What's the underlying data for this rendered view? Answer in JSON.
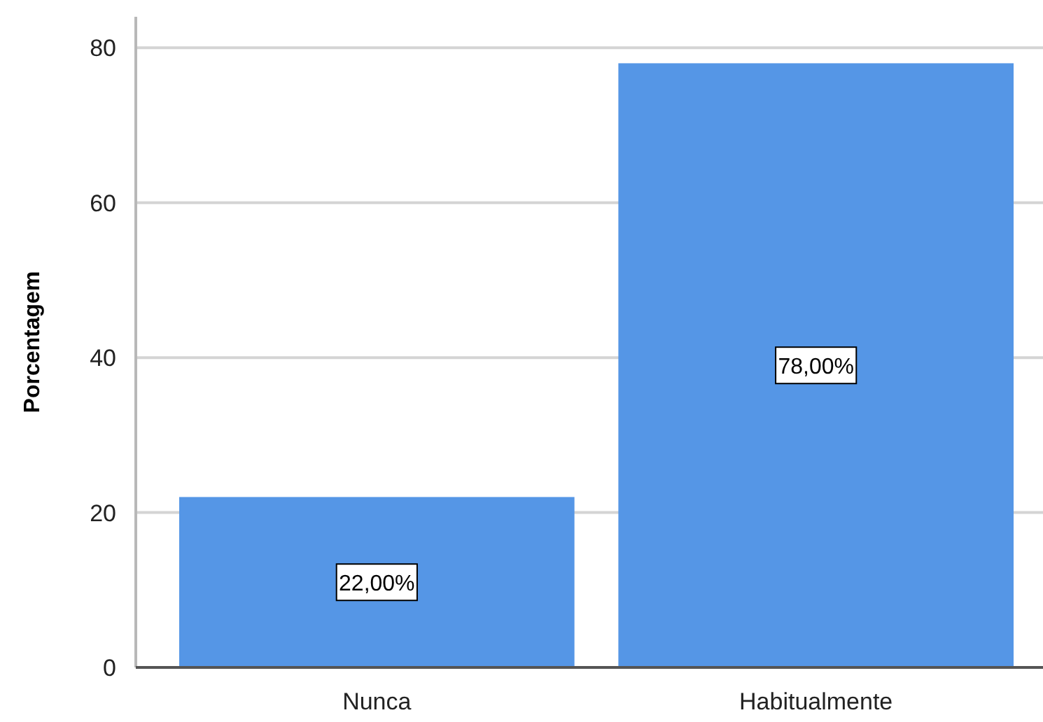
{
  "chart_data": {
    "type": "bar",
    "ylabel": "Porcentagem",
    "categories": [
      "Nunca",
      "Habitualmente"
    ],
    "values": [
      22,
      78
    ],
    "value_labels": [
      "22,00%",
      "78,00%"
    ],
    "color": "#5596e6",
    "ylim": [
      0,
      84
    ],
    "yticks": [
      0,
      20,
      40,
      60,
      80
    ],
    "grid": "y"
  }
}
